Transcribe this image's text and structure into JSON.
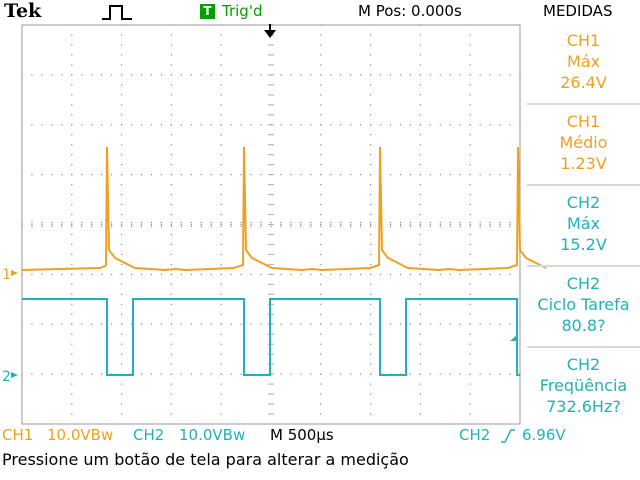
{
  "header": {
    "brand": "Tek",
    "trigger_icon_letter": "T",
    "trigger_status": "Trig'd",
    "horizontal_position": "M Pos: 0.000s",
    "menu_title": "MEDIDAS"
  },
  "channel_markers": {
    "ch1": "1",
    "ch2": "2"
  },
  "measurements": [
    {
      "channel": "CH1",
      "type": "Máx",
      "value": "26.4V"
    },
    {
      "channel": "CH1",
      "type": "Médio",
      "value": "1.23V"
    },
    {
      "channel": "CH2",
      "type": "Máx",
      "value": "15.2V"
    },
    {
      "channel": "CH2",
      "type": "Ciclo Tarefa",
      "value": "80.8?"
    },
    {
      "channel": "CH2",
      "type": "Freqüência",
      "value": "732.6Hz?"
    }
  ],
  "bottom": {
    "ch1_label": "CH1",
    "ch1_scale": "10.0VBw",
    "ch2_label": "CH2",
    "ch2_scale": "10.0VBw",
    "timebase": "M 500µs",
    "trigger_source": "CH2",
    "trigger_level": "6.96V"
  },
  "status_message": "Pressione um botão de tela para alterar a medição",
  "colors": {
    "ch1": "#f0a020",
    "ch2": "#20b2b8",
    "trigger": "#00a000",
    "grid": "#888888"
  }
}
